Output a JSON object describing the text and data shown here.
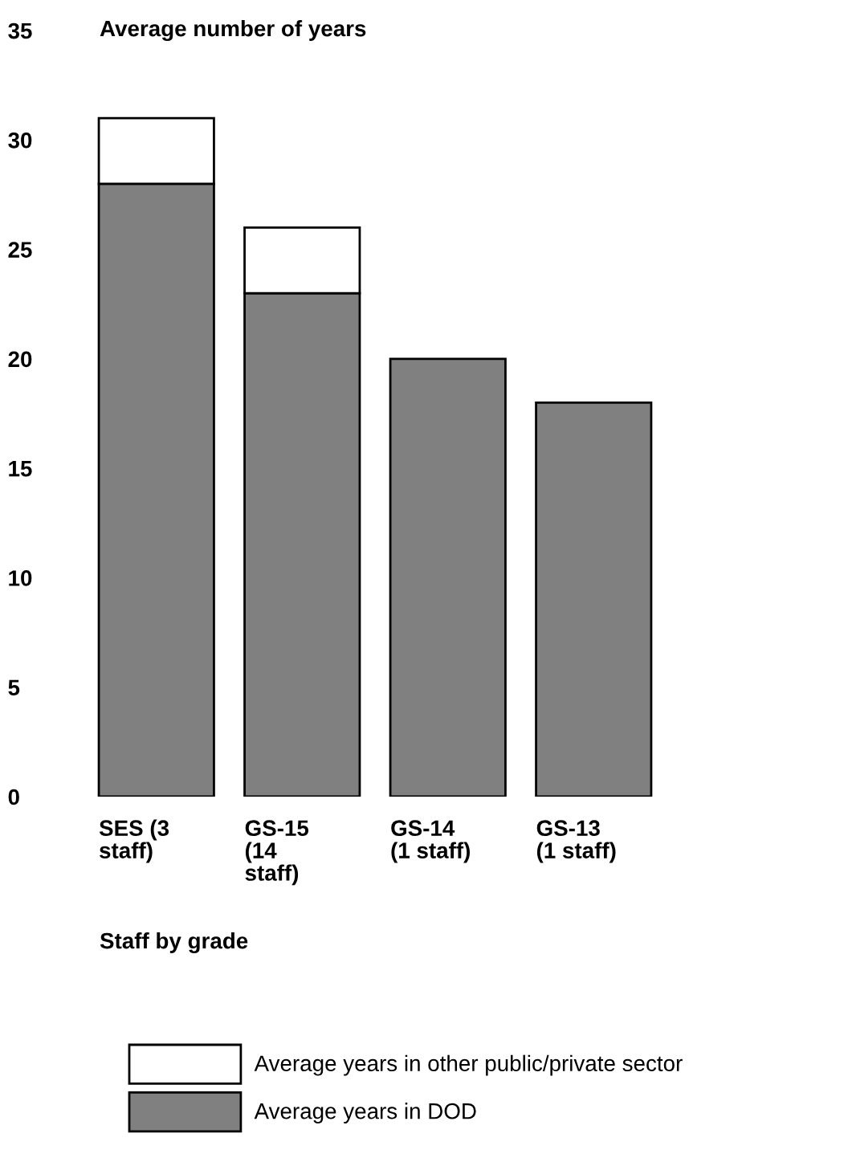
{
  "chart_data": {
    "type": "bar",
    "stacked": true,
    "title": "Average number of years",
    "xlabel": "Staff by grade",
    "categories": [
      "SES (3\nstaff)",
      "GS-15\n(14\nstaff)",
      "GS-14\n(1 staff)",
      "GS-13\n(1 staff)"
    ],
    "series": [
      {
        "name": "Average years in DOD",
        "color": "#808080",
        "values": [
          28,
          23,
          20,
          18
        ]
      },
      {
        "name": "Average years in other public/private sector",
        "color": "#ffffff",
        "values": [
          3,
          3,
          null,
          null
        ]
      }
    ],
    "ylim": [
      0,
      35
    ],
    "yticks": [
      0,
      5,
      10,
      15,
      20,
      25,
      30,
      35
    ],
    "grid": false,
    "legend": "bottom"
  }
}
